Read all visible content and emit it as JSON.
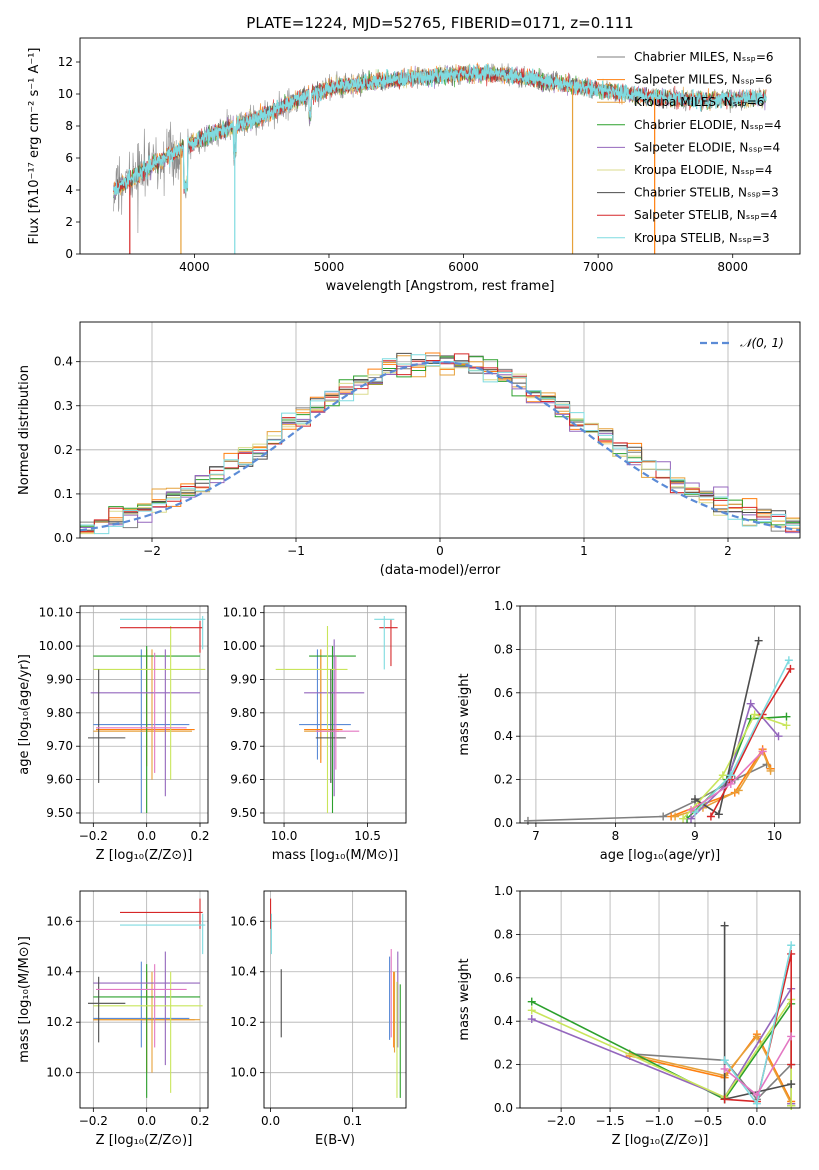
{
  "figure": {
    "title": "PLATE=1224, MJD=52765, FIBERID=0171, z=0.111"
  },
  "colors": {
    "chabrier_miles": "#7f7f7f",
    "salpeter_miles": "#ff7f0e",
    "kroupa_miles": "#e6a13b",
    "chabrier_elodie": "#2ca02c",
    "salpeter_elodie": "#9467bd",
    "kroupa_elodie": "#dbdb8d",
    "chabrier_stelib": "#4d4d4d",
    "salpeter_stelib": "#d62728",
    "kroupa_stelib": "#7fdbe0",
    "gaussian": "#5b8bd6"
  },
  "chart_data": [
    {
      "id": "spectrum",
      "type": "line",
      "title": "PLATE=1224, MJD=52765, FIBERID=0171, z=0.111",
      "xlabel": "wavelength [Angstrom, rest frame]",
      "ylabel": "Flux [fλ10⁻¹⁷ erg cm⁻² s⁻¹ A⁻¹]",
      "xlim": [
        3150,
        8500
      ],
      "ylim": [
        0,
        13.5
      ],
      "xticks": [
        4000,
        5000,
        6000,
        7000,
        8000
      ],
      "yticks": [
        0,
        2,
        4,
        6,
        8,
        10,
        12
      ],
      "legend_position": "upper-right",
      "series": [
        {
          "name": "Chabrier MILES, Nₛₛₚ=6",
          "color": "#7f7f7f"
        },
        {
          "name": "Salpeter MILES, Nₛₛₚ=6",
          "color": "#ff7f0e"
        },
        {
          "name": "Kroupa MILES, Nₛₛₚ=6",
          "color": "#e6a13b"
        },
        {
          "name": "Chabrier ELODIE, Nₛₛₚ=4",
          "color": "#2ca02c"
        },
        {
          "name": "Salpeter ELODIE, Nₛₛₚ=4",
          "color": "#9467bd"
        },
        {
          "name": "Kroupa ELODIE, Nₛₛₚ=4",
          "color": "#dbdb8d"
        },
        {
          "name": "Chabrier STELIB, Nₛₛₚ=3",
          "color": "#4d4d4d"
        },
        {
          "name": "Salpeter STELIB, Nₛₛₚ=4",
          "color": "#d62728"
        },
        {
          "name": "Kroupa STELIB, Nₛₛₚ=3",
          "color": "#7fdbe0"
        }
      ],
      "continuum": {
        "x": [
          3400,
          3500,
          3700,
          3900,
          4000,
          4200,
          4500,
          4800,
          5000,
          5300,
          5600,
          6000,
          6300,
          6600,
          7000,
          7400,
          7800,
          8200
        ],
        "y": [
          4.0,
          4.5,
          5.6,
          6.6,
          7.0,
          7.7,
          8.6,
          9.8,
          10.4,
          10.7,
          11.0,
          11.3,
          11.2,
          10.8,
          10.3,
          9.8,
          9.6,
          9.7
        ]
      }
    },
    {
      "id": "residuals",
      "type": "line",
      "xlabel": "(data-model)/error",
      "ylabel": "Normed distribution",
      "xlim": [
        -2.5,
        2.5
      ],
      "ylim": [
        0,
        0.49
      ],
      "xticks": [
        -2,
        -1,
        0,
        1,
        2
      ],
      "yticks": [
        0.0,
        0.1,
        0.2,
        0.3,
        0.4
      ],
      "legend_position": "upper-right",
      "gaussian_label": "𝒩(0, 1)",
      "bin_width": 0.1
    },
    {
      "id": "age_vs_Z",
      "type": "scatter",
      "xlabel": "Z [log₁₀(Z/Z⊙)]",
      "ylabel": "age  [log₁₀(age/yr)]",
      "xlim": [
        -0.25,
        0.23
      ],
      "ylim": [
        9.47,
        10.12
      ],
      "xticks": [
        -0.2,
        0.0,
        0.2
      ],
      "yticks": [
        9.5,
        9.6,
        9.7,
        9.8,
        9.9,
        10.0,
        10.1
      ],
      "points": [
        {
          "x": -0.02,
          "xlo": -0.2,
          "xhi": 0.16,
          "y": 9.765,
          "ylo": 9.5,
          "yhi": 9.99,
          "color": "#5b8bd6"
        },
        {
          "x": 0.0,
          "xlo": -0.19,
          "xhi": 0.18,
          "y": 9.75,
          "ylo": 9.64,
          "yhi": 9.99,
          "color": "#ff7f0e"
        },
        {
          "x": 0.02,
          "xlo": -0.2,
          "xhi": 0.17,
          "y": 9.745,
          "ylo": 9.6,
          "yhi": 9.99,
          "color": "#e6a13b"
        },
        {
          "x": 0.0,
          "xlo": -0.2,
          "xhi": 0.2,
          "y": 9.97,
          "ylo": 9.5,
          "yhi": 10.0,
          "color": "#2ca02c"
        },
        {
          "x": 0.07,
          "xlo": -0.21,
          "xhi": 0.2,
          "y": 9.86,
          "ylo": 9.55,
          "yhi": 9.99,
          "color": "#9467bd"
        },
        {
          "x": 0.09,
          "xlo": -0.2,
          "xhi": 0.22,
          "y": 9.93,
          "ylo": 9.6,
          "yhi": 10.06,
          "color": "#c9e55b"
        },
        {
          "x": -0.18,
          "xlo": -0.22,
          "xhi": -0.08,
          "y": 9.725,
          "ylo": 9.59,
          "yhi": 9.93,
          "color": "#4d4d4d"
        },
        {
          "x": 0.2,
          "xlo": -0.1,
          "xhi": 0.21,
          "y": 10.055,
          "ylo": 9.98,
          "yhi": 10.075,
          "color": "#d62728"
        },
        {
          "x": 0.21,
          "xlo": -0.1,
          "xhi": 0.22,
          "y": 10.08,
          "ylo": 9.99,
          "yhi": 10.09,
          "color": "#7fdbe0"
        },
        {
          "x": 0.03,
          "xlo": -0.19,
          "xhi": 0.15,
          "y": 9.755,
          "ylo": 9.62,
          "yhi": 9.98,
          "color": "#e377c2"
        }
      ]
    },
    {
      "id": "age_vs_mass",
      "type": "scatter",
      "xlabel": "mass [log₁₀(M/M⊙)]",
      "ylabel": "",
      "xlim": [
        9.88,
        10.73
      ],
      "ylim": [
        9.47,
        10.12
      ],
      "xticks": [
        10.0,
        10.5
      ],
      "yticks": [
        9.5,
        9.6,
        9.7,
        9.8,
        9.9,
        10.0,
        10.1
      ],
      "points": [
        {
          "x": 10.2,
          "xlo": 10.09,
          "xhi": 10.4,
          "y": 9.765,
          "ylo": 9.66,
          "yhi": 9.99,
          "color": "#5b8bd6"
        },
        {
          "x": 10.22,
          "xlo": 10.12,
          "xhi": 10.35,
          "y": 9.75,
          "ylo": 9.65,
          "yhi": 9.99,
          "color": "#ff7f0e"
        },
        {
          "x": 10.22,
          "xlo": 10.12,
          "xhi": 10.33,
          "y": 9.745,
          "ylo": 9.66,
          "yhi": 9.99,
          "color": "#e6a13b"
        },
        {
          "x": 10.29,
          "xlo": 10.15,
          "xhi": 10.43,
          "y": 9.97,
          "ylo": 9.5,
          "yhi": 10.0,
          "color": "#2ca02c"
        },
        {
          "x": 10.3,
          "xlo": 10.12,
          "xhi": 10.48,
          "y": 9.86,
          "ylo": 9.55,
          "yhi": 10.02,
          "color": "#9467bd"
        },
        {
          "x": 10.26,
          "xlo": 9.95,
          "xhi": 10.38,
          "y": 9.93,
          "ylo": 9.5,
          "yhi": 10.06,
          "color": "#c9e55b"
        },
        {
          "x": 10.28,
          "xlo": 10.19,
          "xhi": 10.37,
          "y": 9.725,
          "ylo": 9.59,
          "yhi": 9.93,
          "color": "#4d4d4d"
        },
        {
          "x": 10.64,
          "xlo": 10.57,
          "xhi": 10.68,
          "y": 10.055,
          "ylo": 9.94,
          "yhi": 10.08,
          "color": "#d62728"
        },
        {
          "x": 10.6,
          "xlo": 10.54,
          "xhi": 10.66,
          "y": 10.08,
          "ylo": 9.93,
          "yhi": 10.09,
          "color": "#7fdbe0"
        },
        {
          "x": 10.31,
          "xlo": 10.19,
          "xhi": 10.45,
          "y": 9.745,
          "ylo": 9.63,
          "yhi": 9.97,
          "color": "#e377c2"
        }
      ]
    },
    {
      "id": "mass_weight_vs_age",
      "type": "line",
      "xlabel": "age  [log₁₀(age/yr)]",
      "ylabel": "mass weight",
      "xlim": [
        6.8,
        10.32
      ],
      "ylim": [
        0,
        1.0
      ],
      "xticks": [
        7,
        8,
        9,
        10
      ],
      "yticks": [
        0.0,
        0.2,
        0.4,
        0.6,
        0.8,
        1.0
      ],
      "series": [
        {
          "color": "#7f7f7f",
          "x": [
            6.9,
            8.6,
            9.0,
            9.5,
            9.9
          ],
          "y": [
            0.01,
            0.03,
            0.1,
            0.2,
            0.27
          ]
        },
        {
          "color": "#ff7f0e",
          "x": [
            8.7,
            9.05,
            9.5,
            9.85,
            9.95
          ],
          "y": [
            0.03,
            0.08,
            0.14,
            0.34,
            0.25
          ]
        },
        {
          "color": "#e6a13b",
          "x": [
            8.75,
            9.1,
            9.55,
            9.85,
            9.95
          ],
          "y": [
            0.03,
            0.07,
            0.15,
            0.33,
            0.24
          ]
        },
        {
          "color": "#2ca02c",
          "x": [
            8.9,
            9.4,
            9.7,
            10.15
          ],
          "y": [
            0.02,
            0.2,
            0.48,
            0.49
          ]
        },
        {
          "color": "#9467bd",
          "x": [
            8.95,
            9.4,
            9.7,
            10.05
          ],
          "y": [
            0.02,
            0.18,
            0.55,
            0.4
          ]
        },
        {
          "color": "#c9e55b",
          "x": [
            8.85,
            9.35,
            9.75,
            10.15
          ],
          "y": [
            0.02,
            0.22,
            0.5,
            0.45
          ]
        },
        {
          "color": "#4d4d4d",
          "x": [
            9.0,
            9.3,
            9.8
          ],
          "y": [
            0.11,
            0.04,
            0.84
          ]
        },
        {
          "color": "#d62728",
          "x": [
            9.2,
            9.45,
            9.85,
            10.2
          ],
          "y": [
            0.03,
            0.2,
            0.5,
            0.71
          ]
        },
        {
          "color": "#7fdbe0",
          "x": [
            9.0,
            9.45,
            10.18
          ],
          "y": [
            0.05,
            0.22,
            0.75
          ]
        },
        {
          "color": "#e377c2",
          "x": [
            8.95,
            9.45,
            9.85
          ],
          "y": [
            0.06,
            0.18,
            0.33
          ]
        }
      ]
    },
    {
      "id": "mass_vs_Z",
      "type": "scatter",
      "xlabel": "Z [log₁₀(Z/Z⊙)]",
      "ylabel": "mass [log₁₀(M/M⊙)]",
      "xlim": [
        -0.25,
        0.23
      ],
      "ylim": [
        9.86,
        10.72
      ],
      "xticks": [
        -0.2,
        0.0,
        0.2
      ],
      "yticks": [
        10.0,
        10.2,
        10.4,
        10.6
      ],
      "points": [
        {
          "x": -0.02,
          "xlo": -0.2,
          "xhi": 0.16,
          "y": 10.215,
          "ylo": 10.1,
          "yhi": 10.44,
          "color": "#5b8bd6"
        },
        {
          "x": 0.0,
          "xlo": -0.2,
          "xhi": 0.18,
          "y": 10.21,
          "ylo": 10.0,
          "yhi": 10.4,
          "color": "#ff7f0e"
        },
        {
          "x": 0.02,
          "xlo": -0.2,
          "xhi": 0.2,
          "y": 10.21,
          "ylo": 10.0,
          "yhi": 10.4,
          "color": "#e6a13b"
        },
        {
          "x": 0.0,
          "xlo": -0.2,
          "xhi": 0.2,
          "y": 10.3,
          "ylo": 9.9,
          "yhi": 10.43,
          "color": "#2ca02c"
        },
        {
          "x": 0.07,
          "xlo": -0.2,
          "xhi": 0.2,
          "y": 10.355,
          "ylo": 10.03,
          "yhi": 10.48,
          "color": "#9467bd"
        },
        {
          "x": 0.09,
          "xlo": -0.2,
          "xhi": 0.21,
          "y": 10.265,
          "ylo": 9.92,
          "yhi": 10.4,
          "color": "#c9e55b"
        },
        {
          "x": -0.18,
          "xlo": -0.22,
          "xhi": -0.08,
          "y": 10.275,
          "ylo": 10.12,
          "yhi": 10.38,
          "color": "#4d4d4d"
        },
        {
          "x": 0.2,
          "xlo": -0.1,
          "xhi": 0.21,
          "y": 10.635,
          "ylo": 10.57,
          "yhi": 10.69,
          "color": "#d62728"
        },
        {
          "x": 0.21,
          "xlo": -0.1,
          "xhi": 0.22,
          "y": 10.585,
          "ylo": 10.47,
          "yhi": 10.63,
          "color": "#7fdbe0"
        },
        {
          "x": 0.03,
          "xlo": -0.19,
          "xhi": 0.15,
          "y": 10.33,
          "ylo": 10.1,
          "yhi": 10.43,
          "color": "#e377c2"
        }
      ]
    },
    {
      "id": "mass_vs_ebv",
      "type": "scatter",
      "xlabel": "E(B-V)",
      "ylabel": "",
      "xlim": [
        -0.008,
        0.165
      ],
      "ylim": [
        9.86,
        10.72
      ],
      "xticks": [
        0.0,
        0.1
      ],
      "yticks": [
        10.0,
        10.2,
        10.4,
        10.6
      ],
      "points": [
        {
          "x": 0.145,
          "y": 10.21,
          "ylo": 10.13,
          "yhi": 10.46,
          "color": "#5b8bd6"
        },
        {
          "x": 0.15,
          "y": 10.21,
          "ylo": 10.1,
          "yhi": 10.4,
          "color": "#ff7f0e"
        },
        {
          "x": 0.151,
          "y": 10.21,
          "ylo": 10.08,
          "yhi": 10.4,
          "color": "#e6a13b"
        },
        {
          "x": 0.158,
          "y": 10.3,
          "ylo": 9.9,
          "yhi": 10.35,
          "color": "#2ca02c"
        },
        {
          "x": 0.155,
          "y": 10.355,
          "ylo": 10.1,
          "yhi": 10.48,
          "color": "#9467bd"
        },
        {
          "x": 0.154,
          "y": 10.265,
          "ylo": 9.9,
          "yhi": 10.36,
          "color": "#c9e55b"
        },
        {
          "x": 0.013,
          "y": 10.275,
          "ylo": 10.14,
          "yhi": 10.41,
          "color": "#4d4d4d"
        },
        {
          "x": 0.0,
          "y": 10.635,
          "ylo": 10.57,
          "yhi": 10.69,
          "color": "#d62728"
        },
        {
          "x": 0.001,
          "y": 10.585,
          "ylo": 10.47,
          "yhi": 10.63,
          "color": "#7fdbe0"
        },
        {
          "x": 0.147,
          "y": 10.33,
          "ylo": 10.14,
          "yhi": 10.49,
          "color": "#e377c2"
        }
      ]
    },
    {
      "id": "mass_weight_vs_Z",
      "type": "line",
      "xlabel": "Z [log₁₀(Z/Z⊙)]",
      "ylabel": "mass weight",
      "xlim": [
        -2.42,
        0.44
      ],
      "ylim": [
        0,
        1.0
      ],
      "xticks": [
        -2.0,
        -1.5,
        -1.0,
        -0.5,
        0.0
      ],
      "yticks": [
        0.0,
        0.2,
        0.4,
        0.6,
        0.8,
        1.0
      ],
      "series": [
        {
          "color": "#7f7f7f",
          "x": [
            -1.3,
            -0.33,
            0.0,
            0.35
          ],
          "y": [
            0.25,
            0.22,
            0.04,
            0.2
          ]
        },
        {
          "color": "#ff7f0e",
          "x": [
            -1.3,
            -0.33,
            0.0,
            0.35
          ],
          "y": [
            0.24,
            0.14,
            0.34,
            0.03
          ]
        },
        {
          "color": "#e6a13b",
          "x": [
            -1.3,
            -0.33,
            0.0,
            0.35
          ],
          "y": [
            0.25,
            0.15,
            0.33,
            0.02
          ]
        },
        {
          "color": "#2ca02c",
          "x": [
            -2.3,
            -0.33,
            0.35,
            0.35
          ],
          "y": [
            0.49,
            0.04,
            0.48,
            0.01
          ]
        },
        {
          "color": "#9467bd",
          "x": [
            -2.3,
            -0.33,
            0.35,
            0.35
          ],
          "y": [
            0.41,
            0.05,
            0.55,
            0.02
          ]
        },
        {
          "color": "#c9e55b",
          "x": [
            -2.3,
            -0.33,
            0.35,
            0.35
          ],
          "y": [
            0.45,
            0.05,
            0.5,
            0.01
          ]
        },
        {
          "color": "#4d4d4d",
          "x": [
            -0.33,
            -0.33,
            0.35
          ],
          "y": [
            0.84,
            0.04,
            0.11
          ]
        },
        {
          "color": "#d62728",
          "x": [
            -0.33,
            0.0,
            0.35,
            0.35
          ],
          "y": [
            0.04,
            0.03,
            0.71,
            0.2
          ]
        },
        {
          "color": "#7fdbe0",
          "x": [
            -0.33,
            0.0,
            0.35
          ],
          "y": [
            0.22,
            0.02,
            0.75
          ]
        },
        {
          "color": "#e377c2",
          "x": [
            -0.33,
            0.0,
            0.35
          ],
          "y": [
            0.18,
            0.06,
            0.33
          ]
        }
      ]
    }
  ]
}
